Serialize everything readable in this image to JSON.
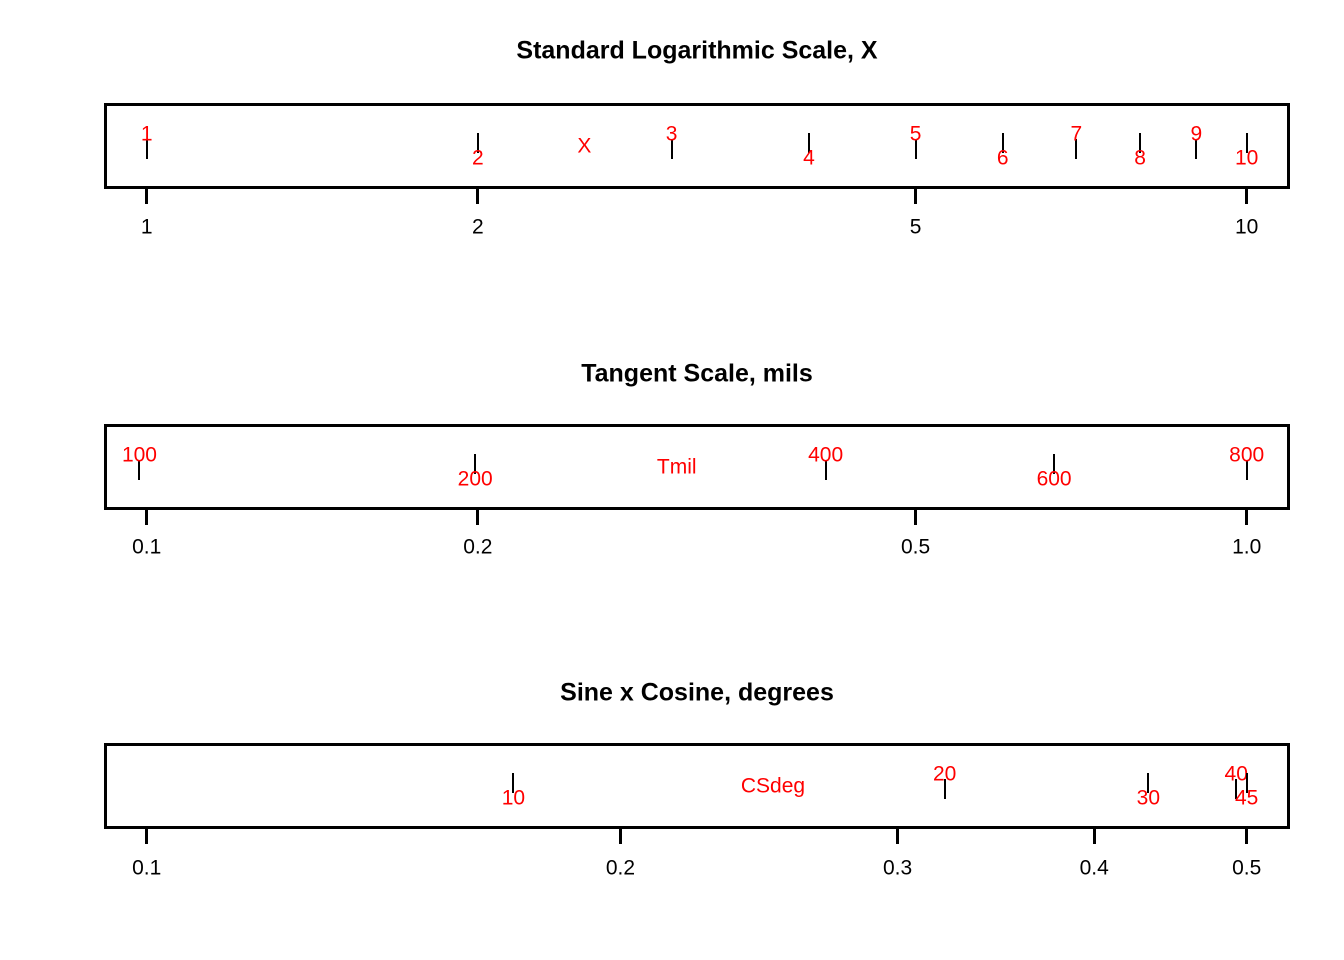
{
  "colors": {
    "background": "#ffffff",
    "text": "#000000",
    "box_line": "#000000",
    "mark_label": "#ff0000"
  },
  "chart_data": [
    {
      "type": "line",
      "variant": "ruled-scale-axis",
      "title": "Standard Logarithmic Scale, X",
      "x_axis": {
        "scale": "log10",
        "range": [
          1,
          10
        ],
        "ticks": [
          {
            "label": "1",
            "value": 1
          },
          {
            "label": "2",
            "value": 2
          },
          {
            "label": "5",
            "value": 5
          },
          {
            "label": "10",
            "value": 10
          }
        ]
      },
      "scale_label": {
        "text": "X",
        "value": 2.5
      },
      "marks": [
        {
          "label": "1",
          "value": 1,
          "label_side": "above"
        },
        {
          "label": "2",
          "value": 2,
          "label_side": "below"
        },
        {
          "label": "3",
          "value": 3,
          "label_side": "above"
        },
        {
          "label": "4",
          "value": 4,
          "label_side": "below"
        },
        {
          "label": "5",
          "value": 5,
          "label_side": "above"
        },
        {
          "label": "6",
          "value": 6,
          "label_side": "below"
        },
        {
          "label": "7",
          "value": 7,
          "label_side": "above"
        },
        {
          "label": "8",
          "value": 8,
          "label_side": "below"
        },
        {
          "label": "9",
          "value": 9,
          "label_side": "above"
        },
        {
          "label": "10",
          "value": 10,
          "label_side": "below"
        }
      ]
    },
    {
      "type": "line",
      "variant": "ruled-scale-axis",
      "title": "Tangent Scale, mils",
      "x_axis": {
        "scale": "log10",
        "range": [
          0.1,
          1.0
        ],
        "ticks": [
          {
            "label": "0.1",
            "value": 0.1
          },
          {
            "label": "0.2",
            "value": 0.2
          },
          {
            "label": "0.5",
            "value": 0.5
          },
          {
            "label": "1.0",
            "value": 1.0
          }
        ]
      },
      "scale_label": {
        "text": "Tmil",
        "value": 0.3033
      },
      "marks": [
        {
          "label": "100",
          "value": 0.0985,
          "label_side": "above"
        },
        {
          "label": "200",
          "value": 0.1989,
          "label_side": "below"
        },
        {
          "label": "400",
          "value": 0.4142,
          "label_side": "above"
        },
        {
          "label": "600",
          "value": 0.6682,
          "label_side": "below"
        },
        {
          "label": "800",
          "value": 1.0,
          "label_side": "above"
        }
      ]
    },
    {
      "type": "line",
      "variant": "ruled-scale-axis",
      "title": "Sine x Cosine, degrees",
      "x_axis": {
        "scale": "log10",
        "range": [
          0.1,
          0.5
        ],
        "ticks": [
          {
            "label": "0.1",
            "value": 0.1
          },
          {
            "label": "0.2",
            "value": 0.2
          },
          {
            "label": "0.3",
            "value": 0.3
          },
          {
            "label": "0.4",
            "value": 0.4
          },
          {
            "label": "0.5",
            "value": 0.5
          }
        ]
      },
      "scale_label": {
        "text": "CSdeg",
        "value": 0.25
      },
      "marks": [
        {
          "label": "10",
          "value": 0.171,
          "label_side": "below"
        },
        {
          "label": "20",
          "value": 0.3214,
          "label_side": "above"
        },
        {
          "label": "30",
          "value": 0.433,
          "label_side": "below"
        },
        {
          "label": "40",
          "value": 0.4924,
          "label_side": "above"
        },
        {
          "label": "45",
          "value": 0.5,
          "label_side": "below"
        }
      ]
    }
  ]
}
